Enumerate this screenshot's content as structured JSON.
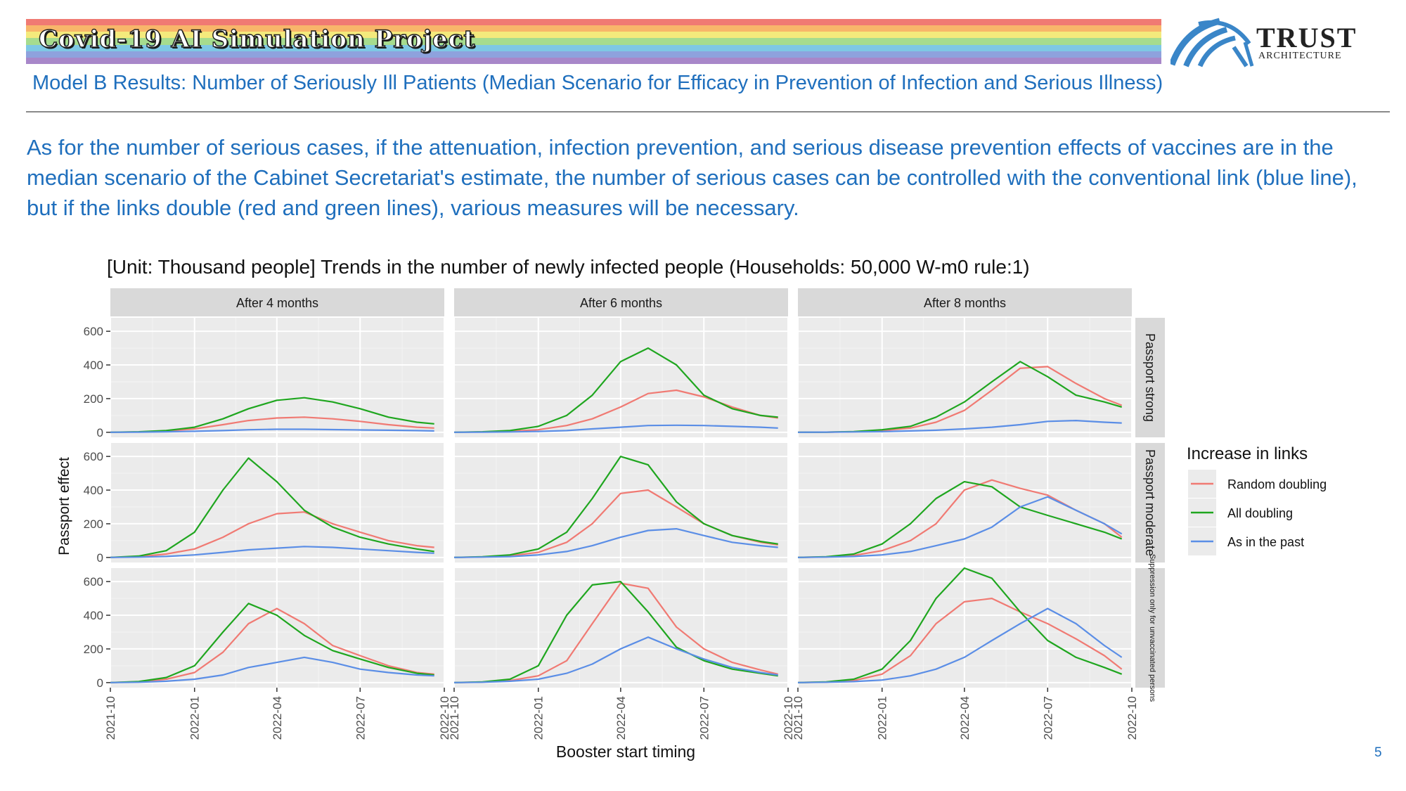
{
  "header": {
    "project_title": "Covid-19 AI Simulation Project",
    "logo_name": "TRUST",
    "logo_sub": "ARCHITECTURE",
    "rainbow_colors": [
      "#f07a73",
      "#f8b66a",
      "#f4ea7c",
      "#a6dc8e",
      "#7ec8e4",
      "#8ea2dd",
      "#a887c9"
    ]
  },
  "slide": {
    "subtitle": "Model B Results: Number of Seriously Ill Patients (Median Scenario for Efficacy in Prevention of Infection and Serious Illness)",
    "body": "As for the number of serious cases, if the attenuation, infection prevention, and serious disease prevention effects of vaccines are in the median scenario of the Cabinet Secretariat's estimate, the number of serious cases can be controlled with the conventional link (blue line), but if the links double (red and green lines), various measures will be necessary.",
    "page_number": "5"
  },
  "chart_data": {
    "type": "line",
    "title": "[Unit: Thousand people] Trends in the number of newly infected people (Households: 50,000 W-m0 rule:1)",
    "xlabel": "Booster start timing",
    "ylabel": "Passport effect",
    "columns": [
      "After 4 months",
      "After 6 months",
      "After 8 months"
    ],
    "rows": [
      "Passport strong",
      "Passport moderate",
      "Suppression only for unvaccinated persons"
    ],
    "x_ticks": [
      "2021-10",
      "2022-01",
      "2022-04",
      "2022-07",
      "2022-10"
    ],
    "y_ticks": [
      0,
      200,
      400,
      600
    ],
    "ylim": [
      -30,
      680
    ],
    "xlim": [
      "2021-10-01",
      "2022-10-01"
    ],
    "grid": true,
    "legend": {
      "title": "Increase in links",
      "position": "right",
      "entries": [
        {
          "name": "Random doubling",
          "color": "#f07a73"
        },
        {
          "name": "All doubling",
          "color": "#1fa61f"
        },
        {
          "name": "As in the past",
          "color": "#5b8ee6"
        }
      ]
    },
    "x": [
      "2021-10-01",
      "2021-11-01",
      "2021-12-01",
      "2022-01-01",
      "2022-02-01",
      "2022-03-01",
      "2022-04-01",
      "2022-05-01",
      "2022-06-01",
      "2022-07-01",
      "2022-08-01",
      "2022-09-01",
      "2022-09-20"
    ],
    "panels": [
      {
        "row": 0,
        "col": 0,
        "series": [
          {
            "name": "Random doubling",
            "values": [
              0,
              2,
              8,
              20,
              45,
              70,
              85,
              90,
              80,
              65,
              45,
              30,
              25
            ]
          },
          {
            "name": "All doubling",
            "values": [
              0,
              3,
              10,
              30,
              80,
              140,
              190,
              205,
              180,
              140,
              90,
              60,
              50
            ]
          },
          {
            "name": "As in the past",
            "values": [
              0,
              1,
              3,
              6,
              10,
              15,
              18,
              18,
              16,
              14,
              12,
              10,
              8
            ]
          }
        ]
      },
      {
        "row": 0,
        "col": 1,
        "series": [
          {
            "name": "Random doubling",
            "values": [
              0,
              2,
              6,
              15,
              40,
              80,
              150,
              230,
              250,
              210,
              150,
              100,
              85
            ]
          },
          {
            "name": "All doubling",
            "values": [
              0,
              3,
              10,
              35,
              100,
              220,
              420,
              500,
              400,
              220,
              140,
              100,
              90
            ]
          },
          {
            "name": "As in the past",
            "values": [
              0,
              1,
              2,
              5,
              10,
              20,
              30,
              40,
              42,
              40,
              35,
              30,
              25
            ]
          }
        ]
      },
      {
        "row": 0,
        "col": 2,
        "series": [
          {
            "name": "Random doubling",
            "values": [
              0,
              1,
              3,
              10,
              25,
              60,
              130,
              250,
              380,
              390,
              290,
              200,
              160
            ]
          },
          {
            "name": "All doubling",
            "values": [
              0,
              1,
              4,
              15,
              35,
              90,
              180,
              300,
              420,
              330,
              220,
              180,
              150
            ]
          },
          {
            "name": "As in the past",
            "values": [
              0,
              1,
              2,
              4,
              8,
              12,
              20,
              30,
              45,
              65,
              70,
              60,
              55
            ]
          }
        ]
      },
      {
        "row": 1,
        "col": 0,
        "series": [
          {
            "name": "Random doubling",
            "values": [
              0,
              5,
              20,
              50,
              120,
              200,
              260,
              270,
              200,
              150,
              100,
              70,
              60
            ]
          },
          {
            "name": "All doubling",
            "values": [
              0,
              8,
              40,
              150,
              400,
              590,
              450,
              280,
              180,
              120,
              80,
              50,
              35
            ]
          },
          {
            "name": "As in the past",
            "values": [
              0,
              2,
              6,
              15,
              30,
              45,
              55,
              65,
              60,
              50,
              40,
              30,
              25
            ]
          }
        ]
      },
      {
        "row": 1,
        "col": 1,
        "series": [
          {
            "name": "Random doubling",
            "values": [
              0,
              3,
              10,
              30,
              90,
              200,
              380,
              400,
              300,
              200,
              130,
              90,
              75
            ]
          },
          {
            "name": "All doubling",
            "values": [
              0,
              4,
              15,
              50,
              150,
              350,
              600,
              550,
              330,
              200,
              130,
              95,
              80
            ]
          },
          {
            "name": "As in the past",
            "values": [
              0,
              2,
              5,
              15,
              35,
              70,
              120,
              160,
              170,
              130,
              90,
              70,
              60
            ]
          }
        ]
      },
      {
        "row": 1,
        "col": 2,
        "series": [
          {
            "name": "Random doubling",
            "values": [
              0,
              3,
              12,
              40,
              100,
              200,
              400,
              460,
              410,
              370,
              280,
              200,
              120
            ]
          },
          {
            "name": "All doubling",
            "values": [
              0,
              4,
              20,
              80,
              200,
              350,
              450,
              420,
              300,
              250,
              200,
              150,
              110
            ]
          },
          {
            "name": "As in the past",
            "values": [
              0,
              2,
              6,
              15,
              35,
              70,
              110,
              180,
              300,
              360,
              280,
              200,
              140
            ]
          }
        ]
      },
      {
        "row": 2,
        "col": 0,
        "series": [
          {
            "name": "Random doubling",
            "values": [
              0,
              5,
              20,
              60,
              180,
              350,
              440,
              350,
              220,
              160,
              100,
              60,
              50
            ]
          },
          {
            "name": "All doubling",
            "values": [
              0,
              6,
              30,
              100,
              300,
              470,
              400,
              280,
              190,
              140,
              90,
              55,
              45
            ]
          },
          {
            "name": "As in the past",
            "values": [
              0,
              2,
              8,
              20,
              45,
              90,
              120,
              150,
              120,
              80,
              60,
              45,
              40
            ]
          }
        ]
      },
      {
        "row": 2,
        "col": 1,
        "series": [
          {
            "name": "Random doubling",
            "values": [
              0,
              3,
              12,
              40,
              130,
              350,
              590,
              560,
              330,
              200,
              120,
              75,
              50
            ]
          },
          {
            "name": "All doubling",
            "values": [
              0,
              4,
              20,
              100,
              400,
              580,
              600,
              420,
              210,
              130,
              80,
              55,
              40
            ]
          },
          {
            "name": "As in the past",
            "values": [
              0,
              2,
              8,
              20,
              55,
              110,
              200,
              270,
              200,
              140,
              90,
              60,
              45
            ]
          }
        ]
      },
      {
        "row": 2,
        "col": 2,
        "series": [
          {
            "name": "Random doubling",
            "values": [
              0,
              3,
              12,
              50,
              160,
              350,
              480,
              500,
              420,
              350,
              260,
              160,
              80
            ]
          },
          {
            "name": "All doubling",
            "values": [
              0,
              4,
              20,
              80,
              250,
              500,
              680,
              620,
              420,
              250,
              150,
              90,
              50
            ]
          },
          {
            "name": "As in the past",
            "values": [
              0,
              2,
              6,
              15,
              40,
              80,
              150,
              250,
              350,
              440,
              350,
              220,
              150
            ]
          }
        ]
      }
    ]
  }
}
